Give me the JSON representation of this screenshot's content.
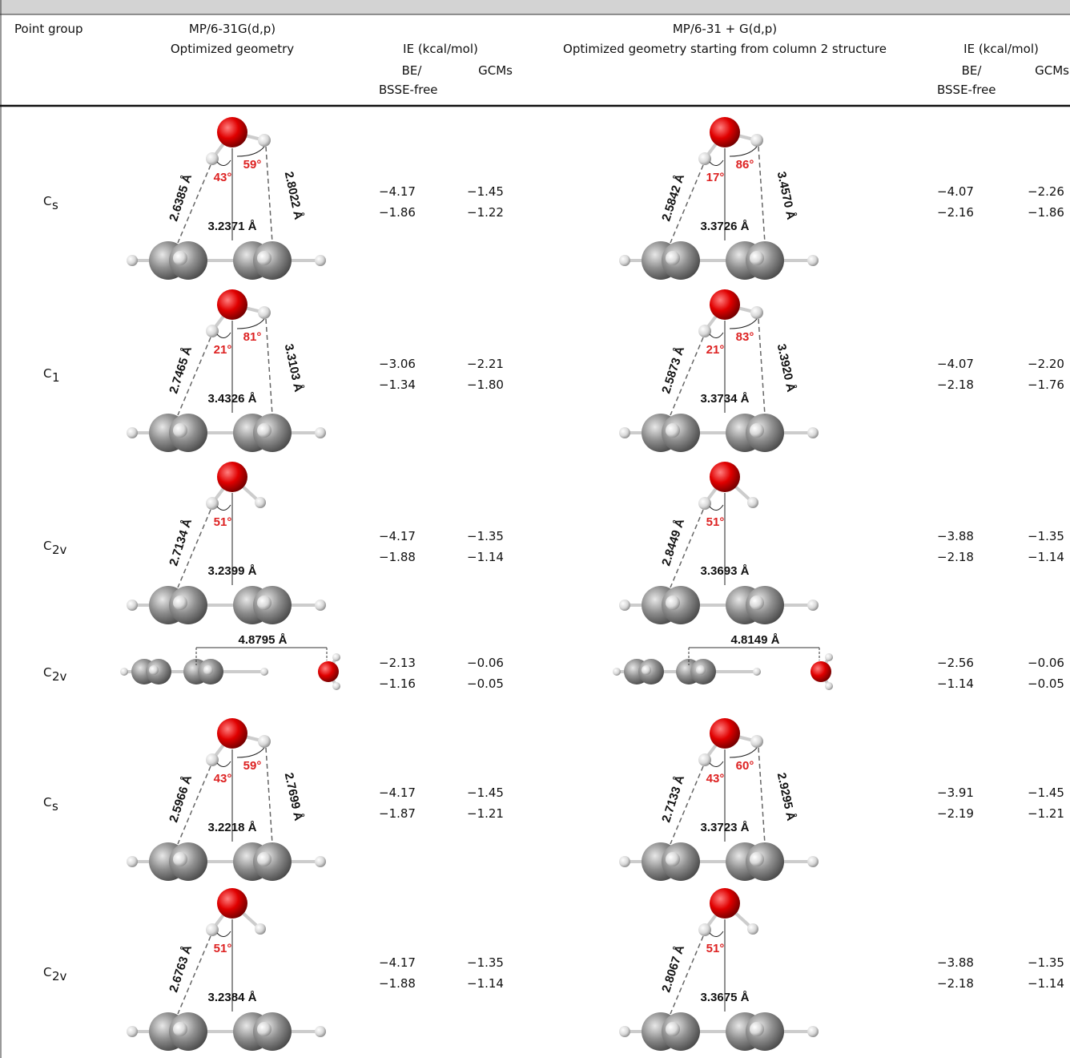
{
  "header": {
    "point_group": "Point group",
    "col2": [
      "MP/6-31G(d,p)",
      "Optimized geometry"
    ],
    "ie": "IE (kcal/mol)",
    "be": [
      "BE/",
      "BSSE-free"
    ],
    "gcm": "GCMs",
    "col5": [
      "MP/6-31 + G(d,p)",
      "Optimized geometry starting from column 2 structure"
    ]
  },
  "rows": [
    {
      "point_group": {
        "base": "C",
        "sub": "s"
      },
      "left": {
        "d_left": "2.6385 Å",
        "d_right": "2.8022 Å",
        "d_center": "3.2371 Å",
        "angle_left": "43°",
        "angle_right": "59°"
      },
      "be": [
        "−4.17",
        "−1.86"
      ],
      "gcm": [
        "−1.45",
        "−1.22"
      ],
      "right": {
        "d_left": "2.5842 Å",
        "d_right": "3.4570 Å",
        "d_center": "3.3726 Å",
        "angle_left": "17°",
        "angle_right": "86°"
      },
      "be2": [
        "−4.07",
        "−2.16"
      ],
      "gcm2": [
        "−2.26",
        "−1.86"
      ]
    },
    {
      "point_group": {
        "base": "C",
        "sub": "1"
      },
      "left": {
        "d_left": "2.7465 Å",
        "d_right": "3.3103 Å",
        "d_center": "3.4326 Å",
        "angle_left": "21°",
        "angle_right": "81°"
      },
      "be": [
        "−3.06",
        "−1.34"
      ],
      "gcm": [
        "−2.21",
        "−1.80"
      ],
      "right": {
        "d_left": "2.5873 Å",
        "d_right": "3.3920 Å",
        "d_center": "3.3734 Å",
        "angle_left": "21°",
        "angle_right": "83°"
      },
      "be2": [
        "−4.07",
        "−2.18"
      ],
      "gcm2": [
        "−2.20",
        "−1.76"
      ]
    },
    {
      "point_group": {
        "base": "C",
        "sub": "2v"
      },
      "left": {
        "d_left": "2.7134 Å",
        "d_center": "3.2399 Å",
        "angle_left": "51°"
      },
      "be": [
        "−4.17",
        "−1.88"
      ],
      "gcm": [
        "−1.35",
        "−1.14"
      ],
      "right": {
        "d_left": "2.8449 Å",
        "d_center": "3.3693 Å",
        "angle_left": "51°"
      },
      "be2": [
        "−3.88",
        "−2.18"
      ],
      "gcm2": [
        "−1.35",
        "−1.14"
      ]
    },
    {
      "point_group": {
        "base": "C",
        "sub": "2v"
      },
      "left": {
        "d_horizontal": "4.8795 Å"
      },
      "be": [
        "−2.13",
        "−1.16"
      ],
      "gcm": [
        "−0.06",
        "−0.05"
      ],
      "right": {
        "d_horizontal": "4.8149 Å"
      },
      "be2": [
        "−2.56",
        "−1.14"
      ],
      "gcm2": [
        "−0.06",
        "−0.05"
      ]
    },
    {
      "point_group": {
        "base": "C",
        "sub": "s"
      },
      "left": {
        "d_left": "2.5966 Å",
        "d_right": "2.7699 Å",
        "d_center": "3.2218 Å",
        "angle_left": "43°",
        "angle_right": "59°"
      },
      "be": [
        "−4.17",
        "−1.87"
      ],
      "gcm": [
        "−1.45",
        "−1.21"
      ],
      "right": {
        "d_left": "2.7133 Å",
        "d_right": "2.9295 Å",
        "d_center": "3.3723 Å",
        "angle_left": "43°",
        "angle_right": "60°"
      },
      "be2": [
        "−3.91",
        "−2.19"
      ],
      "gcm2": [
        "−1.45",
        "−1.21"
      ]
    },
    {
      "point_group": {
        "base": "C",
        "sub": "2v"
      },
      "left": {
        "d_left": "2.6763 Å",
        "d_center": "3.2384 Å",
        "angle_left": "51°"
      },
      "be": [
        "−4.17",
        "−1.88"
      ],
      "gcm": [
        "−1.35",
        "−1.14"
      ],
      "right": {
        "d_left": "2.8067 Å",
        "d_center": "3.3675 Å",
        "angle_left": "51°"
      },
      "be2": [
        "−3.88",
        "−2.18"
      ],
      "gcm2": [
        "−1.35",
        "−1.14"
      ]
    }
  ]
}
